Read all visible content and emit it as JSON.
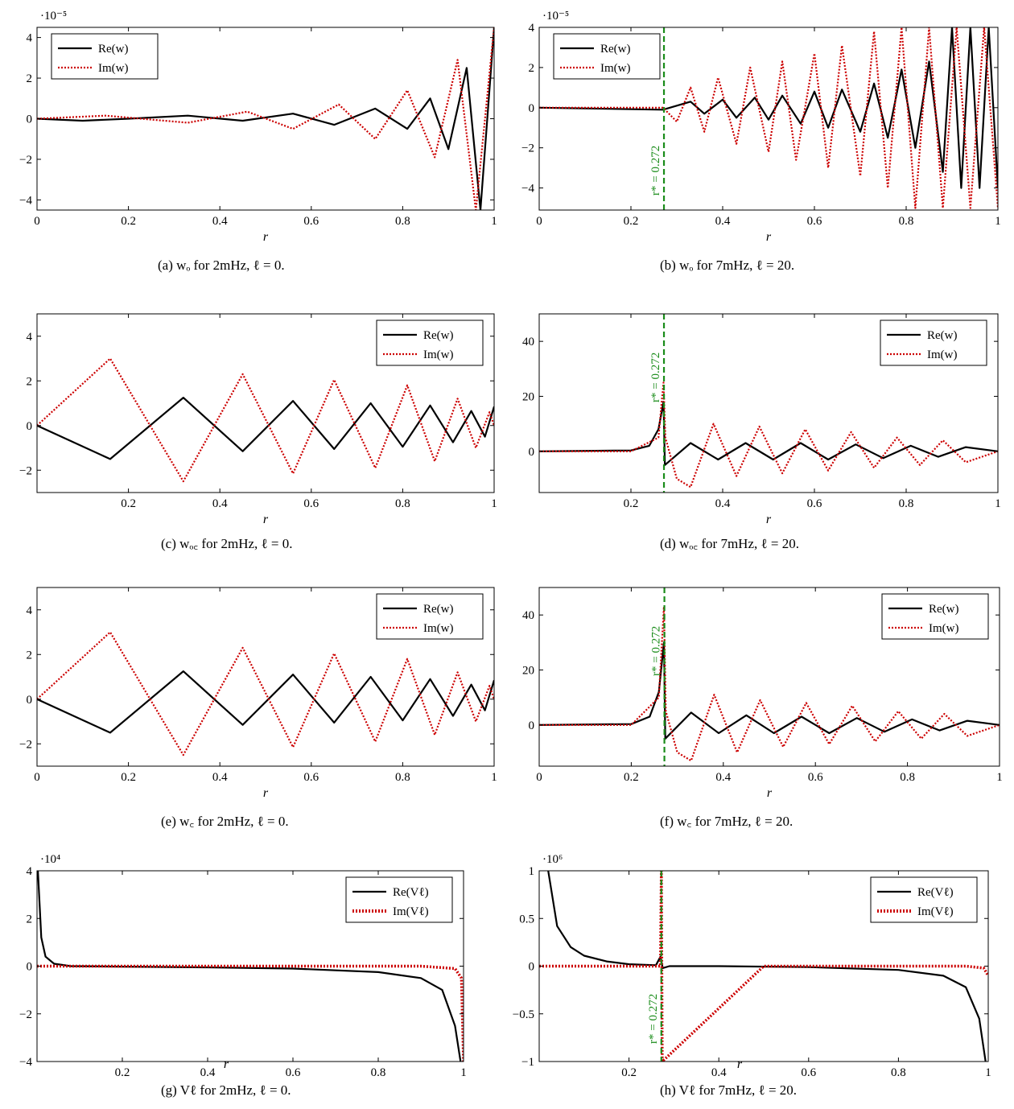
{
  "chart_data": [
    {
      "id": "a",
      "type": "line",
      "caption": "(a) wₒ for 2mHz, ℓ = 0.",
      "xlabel": "r",
      "ylabel": "",
      "multiplier_label": "·10⁻⁵",
      "xlim": [
        0,
        1
      ],
      "ylim": [
        -4.5,
        4.5
      ],
      "xticks": [
        "0",
        "0.2",
        "0.4",
        "0.6",
        "0.8",
        "1"
      ],
      "xtick_values": [
        0,
        0.2,
        0.4,
        0.6,
        0.8,
        1
      ],
      "yticks": [
        "−4",
        "−2",
        "0",
        "2",
        "4"
      ],
      "ytick_values": [
        -4,
        -2,
        0,
        2,
        4
      ],
      "legend": {
        "placement": "top-left",
        "entries": [
          "Re(w)",
          "Im(w)"
        ]
      },
      "marker": null,
      "series": [
        {
          "name": "Re(w)",
          "color": "#000000",
          "style": "solid",
          "x": [
            0,
            0.1,
            0.2,
            0.33,
            0.45,
            0.56,
            0.65,
            0.74,
            0.81,
            0.86,
            0.9,
            0.94,
            0.97,
            1.0
          ],
          "y": [
            0,
            -0.1,
            0,
            0.15,
            -0.1,
            0.25,
            -0.3,
            0.5,
            -0.5,
            1.0,
            -1.5,
            2.5,
            -4.5,
            4.5
          ]
        },
        {
          "name": "Im(w)",
          "color": "#cc0000",
          "style": "dotted",
          "x": [
            0,
            0.15,
            0.33,
            0.46,
            0.56,
            0.66,
            0.74,
            0.81,
            0.87,
            0.92,
            0.96,
            1.0
          ],
          "y": [
            0,
            0.15,
            -0.2,
            0.35,
            -0.5,
            0.7,
            -1.0,
            1.4,
            -1.9,
            2.9,
            -4.5,
            4.5
          ]
        }
      ]
    },
    {
      "id": "b",
      "type": "line",
      "caption": "(b) wₒ for 7mHz, ℓ = 20.",
      "xlabel": "r",
      "ylabel": "",
      "multiplier_label": "·10⁻⁵",
      "xlim": [
        0,
        1
      ],
      "ylim": [
        -5.1,
        4
      ],
      "xticks": [
        "0",
        "0.2",
        "0.4",
        "0.6",
        "0.8",
        "1"
      ],
      "xtick_values": [
        0,
        0.2,
        0.4,
        0.6,
        0.8,
        1
      ],
      "yticks": [
        "−4",
        "−2",
        "0",
        "2",
        "4"
      ],
      "ytick_values": [
        -4,
        -2,
        0,
        2,
        4
      ],
      "legend": {
        "placement": "top-left",
        "entries": [
          "Re(w)",
          "Im(w)"
        ]
      },
      "marker": {
        "x": 0.272,
        "label": "r* = 0.272"
      },
      "series": [
        {
          "name": "Re(w)",
          "color": "#000000",
          "style": "solid",
          "x": [
            0,
            0.27,
            0.33,
            0.36,
            0.4,
            0.43,
            0.47,
            0.5,
            0.53,
            0.57,
            0.6,
            0.63,
            0.66,
            0.7,
            0.73,
            0.76,
            0.79,
            0.82,
            0.85,
            0.88,
            0.9,
            0.92,
            0.94,
            0.96,
            0.98,
            1.0
          ],
          "y": [
            0,
            -0.1,
            0.3,
            -0.3,
            0.4,
            -0.5,
            0.5,
            -0.6,
            0.6,
            -0.8,
            0.8,
            -1.0,
            0.9,
            -1.2,
            1.2,
            -1.5,
            1.9,
            -2.0,
            2.3,
            -3.2,
            4.0,
            -4.0,
            4.0,
            -4.0,
            4.0,
            -4.0
          ]
        },
        {
          "name": "Im(w)",
          "color": "#cc0000",
          "style": "dotted",
          "x": [
            0,
            0.27,
            0.3,
            0.33,
            0.36,
            0.39,
            0.43,
            0.46,
            0.5,
            0.53,
            0.56,
            0.6,
            0.63,
            0.66,
            0.7,
            0.73,
            0.76,
            0.79,
            0.82,
            0.85,
            0.88,
            0.91,
            0.94,
            0.97,
            1.0
          ],
          "y": [
            0,
            0,
            -0.7,
            1.0,
            -1.2,
            1.5,
            -1.8,
            2.0,
            -2.2,
            2.3,
            -2.6,
            2.7,
            -3.0,
            3.1,
            -3.4,
            3.8,
            -4.0,
            4.0,
            -5.0,
            4.0,
            -5.0,
            4.0,
            -5.0,
            4.0,
            -5.0
          ]
        }
      ]
    },
    {
      "id": "c",
      "type": "line",
      "caption": "(c) wₒ꜀ for 2mHz, ℓ = 0.",
      "xlabel": "r",
      "ylabel": "",
      "multiplier_label": "",
      "xlim": [
        0,
        1
      ],
      "ylim": [
        -3,
        5
      ],
      "xticks": [
        "0.2",
        "0.4",
        "0.6",
        "0.8",
        "1"
      ],
      "xtick_values": [
        0.2,
        0.4,
        0.6,
        0.8,
        1
      ],
      "yticks": [
        "−2",
        "0",
        "2",
        "4"
      ],
      "ytick_values": [
        -2,
        0,
        2,
        4
      ],
      "legend": {
        "placement": "top-right",
        "entries": [
          "Re(w)",
          "Im(w)"
        ]
      },
      "marker": null,
      "series": [
        {
          "name": "Re(w)",
          "color": "#000000",
          "style": "solid",
          "x": [
            0,
            0.16,
            0.32,
            0.45,
            0.56,
            0.65,
            0.73,
            0.8,
            0.86,
            0.91,
            0.95,
            0.98,
            1.0
          ],
          "y": [
            0,
            -1.5,
            1.25,
            -1.15,
            1.1,
            -1.05,
            1.0,
            -0.95,
            0.9,
            -0.75,
            0.65,
            -0.5,
            0.85
          ]
        },
        {
          "name": "Im(w)",
          "color": "#cc0000",
          "style": "dotted",
          "x": [
            0,
            0.16,
            0.32,
            0.45,
            0.56,
            0.65,
            0.74,
            0.81,
            0.87,
            0.92,
            0.96,
            0.99,
            1.0
          ],
          "y": [
            0,
            3.0,
            -2.5,
            2.3,
            -2.15,
            2.05,
            -1.9,
            1.8,
            -1.6,
            1.2,
            -1.0,
            0.6,
            0.0
          ]
        }
      ]
    },
    {
      "id": "d",
      "type": "line",
      "caption": "(d) wₒ꜀ for 7mHz, ℓ = 20.",
      "xlabel": "r",
      "ylabel": "",
      "multiplier_label": "",
      "xlim": [
        0,
        1
      ],
      "ylim": [
        -15,
        50
      ],
      "xticks": [
        "0.2",
        "0.4",
        "0.6",
        "0.8",
        "1"
      ],
      "xtick_values": [
        0.2,
        0.4,
        0.6,
        0.8,
        1
      ],
      "yticks": [
        "0",
        "20",
        "40"
      ],
      "ytick_values": [
        0,
        20,
        40
      ],
      "legend": {
        "placement": "top-right",
        "entries": [
          "Re(w)",
          "Im(w)"
        ]
      },
      "marker": {
        "x": 0.272,
        "label": "r* = 0.272"
      },
      "series": [
        {
          "name": "Re(w)",
          "color": "#000000",
          "style": "solid",
          "x": [
            0,
            0.2,
            0.24,
            0.26,
            0.271,
            0.274,
            0.33,
            0.39,
            0.45,
            0.51,
            0.57,
            0.63,
            0.69,
            0.75,
            0.81,
            0.87,
            0.93,
            1.0
          ],
          "y": [
            0,
            0.3,
            2,
            8,
            18,
            -5,
            3,
            -3,
            3,
            -3,
            3,
            -3,
            2.5,
            -2.5,
            2,
            -2,
            1.5,
            0
          ]
        },
        {
          "name": "Im(w)",
          "color": "#cc0000",
          "style": "dotted",
          "x": [
            0,
            0.2,
            0.26,
            0.271,
            0.275,
            0.3,
            0.33,
            0.38,
            0.43,
            0.48,
            0.53,
            0.58,
            0.63,
            0.68,
            0.73,
            0.78,
            0.83,
            0.88,
            0.93,
            1.0
          ],
          "y": [
            0,
            0,
            5,
            25,
            5,
            -10,
            -13,
            10,
            -9,
            9,
            -8,
            8,
            -7,
            7,
            -6,
            5,
            -5,
            4,
            -4,
            0
          ]
        }
      ]
    },
    {
      "id": "e",
      "type": "line",
      "caption": "(e) w꜀ for 2mHz, ℓ = 0.",
      "xlabel": "r",
      "ylabel": "",
      "multiplier_label": "",
      "xlim": [
        0,
        1
      ],
      "ylim": [
        -3,
        5
      ],
      "xticks": [
        "0",
        "0.2",
        "0.4",
        "0.6",
        "0.8",
        "1"
      ],
      "xtick_values": [
        0,
        0.2,
        0.4,
        0.6,
        0.8,
        1
      ],
      "yticks": [
        "−2",
        "0",
        "2",
        "4"
      ],
      "ytick_values": [
        -2,
        0,
        2,
        4
      ],
      "legend": {
        "placement": "top-right",
        "entries": [
          "Re(w)",
          "Im(w)"
        ]
      },
      "marker": null,
      "series": [
        {
          "name": "Re(w)",
          "color": "#000000",
          "style": "solid",
          "x": [
            0,
            0.16,
            0.32,
            0.45,
            0.56,
            0.65,
            0.73,
            0.8,
            0.86,
            0.91,
            0.95,
            0.98,
            1.0
          ],
          "y": [
            0,
            -1.5,
            1.25,
            -1.15,
            1.1,
            -1.05,
            1.0,
            -0.95,
            0.9,
            -0.75,
            0.65,
            -0.5,
            0.85
          ]
        },
        {
          "name": "Im(w)",
          "color": "#cc0000",
          "style": "dotted",
          "x": [
            0,
            0.16,
            0.32,
            0.45,
            0.56,
            0.65,
            0.74,
            0.81,
            0.87,
            0.92,
            0.96,
            0.99,
            1.0
          ],
          "y": [
            0,
            3.0,
            -2.5,
            2.3,
            -2.15,
            2.05,
            -1.9,
            1.8,
            -1.6,
            1.2,
            -1.0,
            0.6,
            0.0
          ]
        }
      ]
    },
    {
      "id": "f",
      "type": "line",
      "caption": "(f) w꜀ for 7mHz, ℓ = 20.",
      "xlabel": "r",
      "ylabel": "",
      "multiplier_label": "",
      "xlim": [
        0,
        1
      ],
      "ylim": [
        -15,
        50
      ],
      "xticks": [
        "0",
        "0.2",
        "0.4",
        "0.6",
        "0.8",
        "1"
      ],
      "xtick_values": [
        0,
        0.2,
        0.4,
        0.6,
        0.8,
        1
      ],
      "yticks": [
        "0",
        "20",
        "40"
      ],
      "ytick_values": [
        0,
        20,
        40
      ],
      "legend": {
        "placement": "top-right",
        "entries": [
          "Re(w)",
          "Im(w)"
        ]
      },
      "marker": {
        "x": 0.272,
        "label": "r* = 0.272"
      },
      "series": [
        {
          "name": "Re(w)",
          "color": "#000000",
          "style": "solid",
          "x": [
            0,
            0.2,
            0.24,
            0.26,
            0.271,
            0.274,
            0.33,
            0.39,
            0.45,
            0.51,
            0.57,
            0.63,
            0.69,
            0.75,
            0.81,
            0.87,
            0.93,
            1.0
          ],
          "y": [
            0,
            0.3,
            3,
            12,
            30,
            -5,
            4.5,
            -3,
            3.5,
            -3,
            3,
            -3,
            2.5,
            -2.5,
            2,
            -2,
            1.5,
            0
          ]
        },
        {
          "name": "Im(w)",
          "color": "#cc0000",
          "style": "dotted",
          "x": [
            0,
            0.2,
            0.26,
            0.271,
            0.275,
            0.3,
            0.33,
            0.38,
            0.43,
            0.48,
            0.53,
            0.58,
            0.63,
            0.68,
            0.73,
            0.78,
            0.83,
            0.88,
            0.93,
            1.0
          ],
          "y": [
            0,
            0,
            10,
            43,
            5,
            -10,
            -13,
            11,
            -10,
            9,
            -8,
            8,
            -7,
            7,
            -6,
            5,
            -5,
            4,
            -4,
            0
          ]
        }
      ]
    },
    {
      "id": "g",
      "type": "line",
      "caption": "(g) Vℓ for 2mHz, ℓ = 0.",
      "xlabel": "r",
      "ylabel": "",
      "multiplier_label": "·10⁴",
      "xlim": [
        0,
        1
      ],
      "ylim": [
        -4,
        4
      ],
      "xticks": [
        "0.2",
        "0.4",
        "0.6",
        "0.8",
        "1"
      ],
      "xtick_values": [
        0.2,
        0.4,
        0.6,
        0.8,
        1
      ],
      "yticks": [
        "−4",
        "−2",
        "0",
        "2",
        "4"
      ],
      "ytick_values": [
        -4,
        -2,
        0,
        2,
        4
      ],
      "legend": {
        "placement": "top-right",
        "entries": [
          "Re(Vℓ)",
          "Im(Vℓ)"
        ]
      },
      "marker": null,
      "series": [
        {
          "name": "Re(Vℓ)",
          "color": "#000000",
          "style": "solid",
          "x": [
            0.002,
            0.01,
            0.02,
            0.04,
            0.08,
            0.2,
            0.4,
            0.6,
            0.8,
            0.9,
            0.95,
            0.98,
            0.993
          ],
          "y": [
            4.0,
            1.2,
            0.4,
            0.1,
            0.0,
            -0.02,
            -0.05,
            -0.1,
            -0.25,
            -0.5,
            -1.0,
            -2.5,
            -4.0
          ]
        },
        {
          "name": "Im(Vℓ)",
          "color": "#cc0000",
          "style": "dotted",
          "x": [
            0.0,
            0.5,
            0.9,
            0.98,
            0.995,
            1.0
          ],
          "y": [
            0.0,
            0.0,
            0.0,
            -0.1,
            -0.5,
            -4.0
          ]
        }
      ]
    },
    {
      "id": "h",
      "type": "line",
      "caption": "(h) Vℓ for 7mHz, ℓ = 20.",
      "xlabel": "r",
      "ylabel": "",
      "multiplier_label": "·10⁶",
      "xlim": [
        0,
        1
      ],
      "ylim": [
        -1,
        1
      ],
      "xticks": [
        "0.2",
        "0.4",
        "0.6",
        "0.8",
        "1"
      ],
      "xtick_values": [
        0.2,
        0.4,
        0.6,
        0.8,
        1
      ],
      "yticks": [
        "−1",
        "−0.5",
        "0",
        "0.5",
        "1"
      ],
      "ytick_values": [
        -1,
        -0.5,
        0,
        0.5,
        1
      ],
      "legend": {
        "placement": "top-right",
        "entries": [
          "Re(Vℓ)",
          "Im(Vℓ)"
        ]
      },
      "marker": {
        "x": 0.272,
        "label": "r* = 0.272"
      },
      "series": [
        {
          "name": "Re(Vℓ)",
          "color": "#000000",
          "style": "solid",
          "x": [
            0.02,
            0.04,
            0.07,
            0.1,
            0.15,
            0.2,
            0.26,
            0.27,
            0.275,
            0.29,
            0.4,
            0.6,
            0.8,
            0.9,
            0.95,
            0.98,
            0.994
          ],
          "y": [
            1.0,
            0.42,
            0.2,
            0.11,
            0.05,
            0.02,
            0.01,
            0.1,
            -0.02,
            0.0,
            0.0,
            -0.01,
            -0.04,
            -0.1,
            -0.22,
            -0.55,
            -1.0
          ]
        },
        {
          "name": "Im(Vℓ)",
          "color": "#cc0000",
          "style": "dotted",
          "x": [
            0.0,
            0.27,
            0.272,
            0.274,
            0.5,
            0.95,
            0.99,
            1.0
          ],
          "y": [
            0.0,
            0.0,
            1.0,
            -1.0,
            0.0,
            0.0,
            -0.02,
            -0.1
          ]
        }
      ]
    }
  ]
}
